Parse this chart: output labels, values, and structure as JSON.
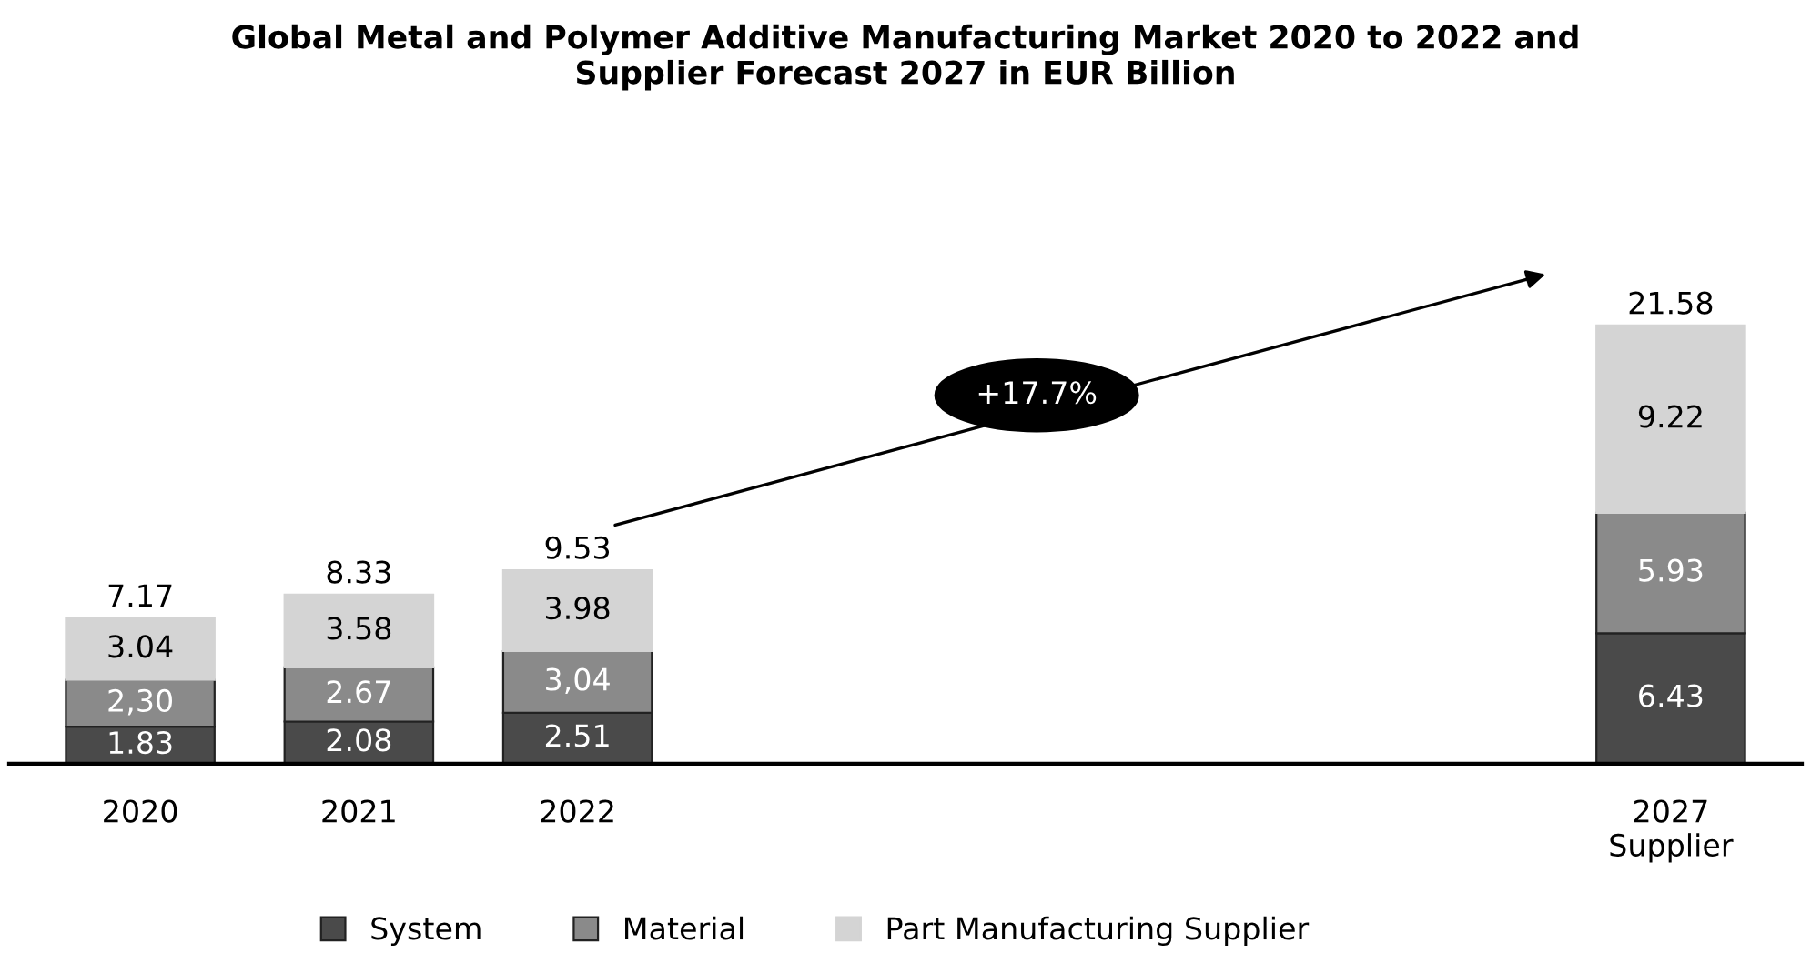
{
  "chart_data": {
    "type": "bar",
    "stacked": true,
    "title": "Global Metal and Polymer Additive Manufacturing Market 2020 to 2022 and\nSupplier Forecast 2027 in EUR Billion",
    "categories": [
      "2020",
      "2021",
      "2022",
      null,
      null,
      null,
      null,
      "2027\nSupplier"
    ],
    "series": [
      {
        "name": "System",
        "color": "#4a4a4a",
        "values": [
          1.83,
          2.08,
          2.51,
          null,
          null,
          null,
          null,
          6.43
        ],
        "value_labels": [
          "1.83",
          "2.08",
          "2.51",
          null,
          null,
          null,
          null,
          "6.43"
        ]
      },
      {
        "name": "Material",
        "color": "#8a8a8a",
        "values": [
          2.3,
          2.67,
          3.04,
          null,
          null,
          null,
          null,
          5.93
        ],
        "value_labels": [
          "2,30",
          "2.67",
          "3,04",
          null,
          null,
          null,
          null,
          "5.93"
        ]
      },
      {
        "name": "Part Manufacturing Supplier",
        "color": "#d4d4d4",
        "values": [
          3.04,
          3.58,
          3.98,
          null,
          null,
          null,
          null,
          9.22
        ],
        "value_labels": [
          "3.04",
          "3.58",
          "3.98",
          null,
          null,
          null,
          null,
          "9.22"
        ]
      }
    ],
    "totals": [
      "7.17",
      "8.33",
      "9.53",
      null,
      null,
      null,
      null,
      "21.58"
    ],
    "annotations": [
      "+17.7%"
    ],
    "legend": "bottom",
    "grid": false
  }
}
